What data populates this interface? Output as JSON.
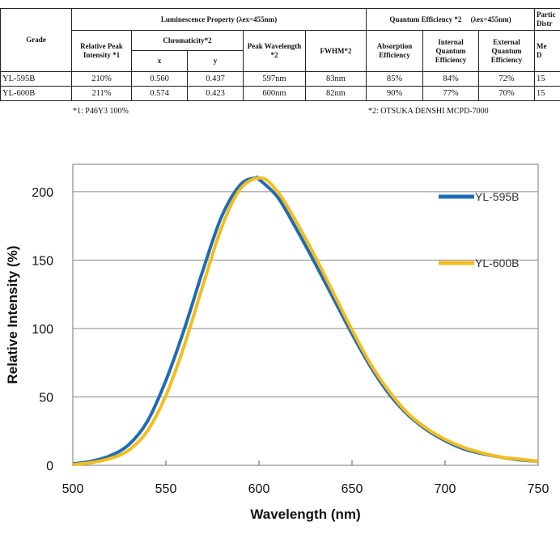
{
  "table": {
    "grade_header": "Grade",
    "lum_header": "Luminescence Property (λex=455nm)",
    "qe_header": "Quantum Efficiency *2　 (λex=455nm)",
    "particle_header": [
      "Partic",
      "Distr"
    ],
    "rel_peak_header": "Relative Peak Intensity *1",
    "chroma_header": "Chromaticity*2",
    "peak_wl_header": "Peak Wavelength *2",
    "fwhm_header": "FWHM*2",
    "absorption_header": "Absorption Efficiency",
    "internal_header": "Internal Quantum Efficiency",
    "external_header": "External Quantum Efficiency",
    "median_header": [
      "Me",
      "D"
    ],
    "x_header": "x",
    "y_header": "y",
    "rows": [
      {
        "grade": "YL-595B",
        "rel_peak": "210%",
        "x": "0.560",
        "y": "0.437",
        "peak_wl": "597nm",
        "fwhm": "83nm",
        "absorption": "85%",
        "internal": "84%",
        "external": "72%",
        "median": "15"
      },
      {
        "grade": "YL-600B",
        "rel_peak": "211%",
        "x": "0.574",
        "y": "0.423",
        "peak_wl": "600nm",
        "fwhm": "82nm",
        "absorption": "90%",
        "internal": "77%",
        "external": "70%",
        "median": "15"
      }
    ],
    "footnote1": "*1: P46Y3 100%",
    "footnote2": "*2: OTSUKA DENSHI MCPD-7000"
  },
  "chart_data": {
    "type": "line",
    "title": "",
    "xlabel": "Wavelength (nm)",
    "ylabel": "Relative Intensity (%)",
    "xlim": [
      500,
      750
    ],
    "ylim": [
      0,
      220
    ],
    "xticks": [
      500,
      550,
      600,
      650,
      700,
      750
    ],
    "yticks": [
      0,
      50,
      100,
      150,
      200
    ],
    "grid": "horizontal",
    "legend": "right",
    "series": [
      {
        "name": "YL-595B",
        "color": "#1f6bb5",
        "x": [
          500,
          510,
          520,
          530,
          540,
          550,
          560,
          570,
          580,
          590,
          598,
          600,
          610,
          620,
          630,
          640,
          650,
          660,
          670,
          680,
          690,
          700,
          710,
          720,
          730,
          740,
          750
        ],
        "y": [
          1,
          3,
          7,
          15,
          32,
          62,
          100,
          143,
          182,
          205,
          210,
          209,
          196,
          173,
          148,
          122,
          96,
          72,
          52,
          37,
          26,
          18,
          12,
          8.5,
          6,
          4,
          3
        ]
      },
      {
        "name": "YL-600B",
        "color": "#f2bd1d",
        "x": [
          500,
          510,
          520,
          530,
          540,
          550,
          560,
          570,
          580,
          590,
          601,
          610,
          620,
          630,
          640,
          650,
          660,
          670,
          680,
          690,
          700,
          710,
          720,
          730,
          740,
          750
        ],
        "y": [
          0.5,
          2,
          5,
          11,
          25,
          51,
          88,
          132,
          174,
          202,
          210,
          200,
          178,
          153,
          126,
          99,
          74,
          54,
          38,
          27,
          19,
          13,
          9,
          6,
          4.5,
          3
        ]
      }
    ]
  }
}
